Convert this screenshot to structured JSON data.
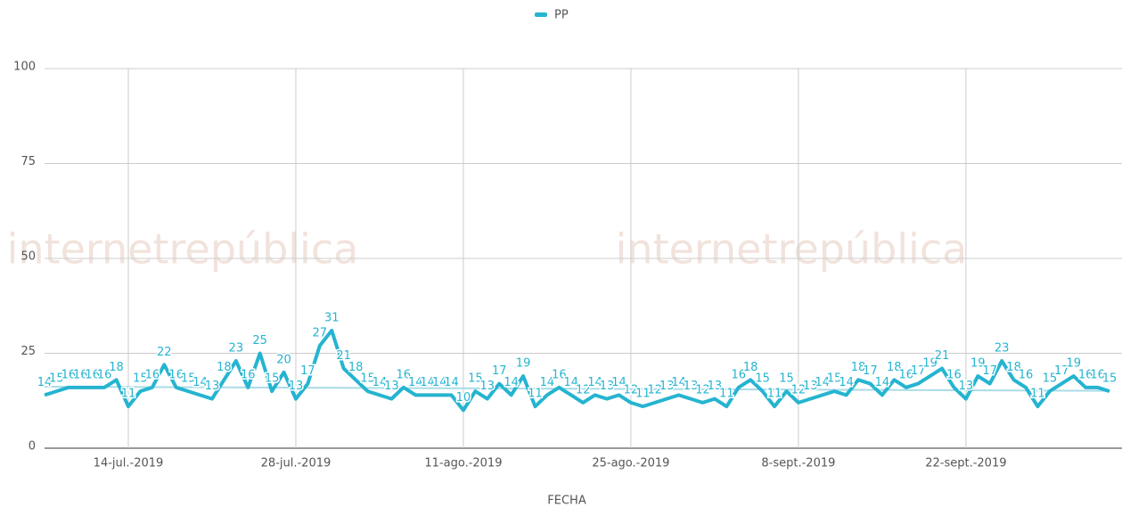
{
  "chart_data": {
    "type": "line",
    "legend_position": "top",
    "xlabel": "FECHA",
    "watermark": "internetrepública",
    "grid": true,
    "x": [
      "2019-07-07",
      "2019-07-08",
      "2019-07-09",
      "2019-07-10",
      "2019-07-11",
      "2019-07-12",
      "2019-07-13",
      "2019-07-14",
      "2019-07-15",
      "2019-07-16",
      "2019-07-17",
      "2019-07-18",
      "2019-07-19",
      "2019-07-20",
      "2019-07-21",
      "2019-07-22",
      "2019-07-23",
      "2019-07-24",
      "2019-07-25",
      "2019-07-26",
      "2019-07-27",
      "2019-07-28",
      "2019-07-29",
      "2019-07-30",
      "2019-07-31",
      "2019-08-01",
      "2019-08-02",
      "2019-08-03",
      "2019-08-04",
      "2019-08-05",
      "2019-08-06",
      "2019-08-07",
      "2019-08-08",
      "2019-08-09",
      "2019-08-10",
      "2019-08-11",
      "2019-08-12",
      "2019-08-13",
      "2019-08-14",
      "2019-08-15",
      "2019-08-16",
      "2019-08-17",
      "2019-08-18",
      "2019-08-19",
      "2019-08-20",
      "2019-08-21",
      "2019-08-22",
      "2019-08-23",
      "2019-08-24",
      "2019-08-25",
      "2019-08-26",
      "2019-08-27",
      "2019-08-28",
      "2019-08-29",
      "2019-08-30",
      "2019-08-31",
      "2019-09-01",
      "2019-09-02",
      "2019-09-03",
      "2019-09-04",
      "2019-09-05",
      "2019-09-06",
      "2019-09-07",
      "2019-09-08",
      "2019-09-09",
      "2019-09-10",
      "2019-09-11",
      "2019-09-12",
      "2019-09-13",
      "2019-09-14",
      "2019-09-15",
      "2019-09-16",
      "2019-09-17",
      "2019-09-18",
      "2019-09-19",
      "2019-09-20",
      "2019-09-21",
      "2019-09-22",
      "2019-09-23",
      "2019-09-24",
      "2019-09-25",
      "2019-09-26",
      "2019-09-27",
      "2019-09-28",
      "2019-09-29",
      "2019-09-30",
      "2019-10-01",
      "2019-10-02",
      "2019-10-03",
      "2019-10-04"
    ],
    "series": [
      {
        "name": "PP",
        "color": "#25b4d0",
        "values": [
          14,
          15,
          16,
          16,
          16,
          16,
          18,
          11,
          15,
          16,
          22,
          16,
          15,
          14,
          13,
          18,
          23,
          16,
          25,
          15,
          20,
          13,
          17,
          27,
          31,
          21,
          18,
          15,
          14,
          13,
          16,
          14,
          14,
          14,
          14,
          10,
          15,
          13,
          17,
          14,
          19,
          11,
          14,
          16,
          14,
          12,
          14,
          13,
          14,
          12,
          11,
          12,
          13,
          14,
          13,
          12,
          13,
          11,
          16,
          18,
          15,
          11,
          15,
          12,
          13,
          14,
          15,
          14,
          18,
          17,
          14,
          18,
          16,
          17,
          19,
          21,
          16,
          13,
          19,
          17,
          23,
          18,
          16,
          11,
          15,
          17,
          19,
          16,
          16,
          15
        ]
      }
    ],
    "trendline": {
      "color": "#a9dce7",
      "values": [
        16.2,
        15.1
      ]
    },
    "xlim": [
      "2019-07-07",
      "2019-10-04"
    ],
    "xticks": [
      {
        "value": "2019-07-14",
        "label": "14-jul.-2019"
      },
      {
        "value": "2019-07-28",
        "label": "28-jul.-2019"
      },
      {
        "value": "2019-08-11",
        "label": "11-ago.-2019"
      },
      {
        "value": "2019-08-25",
        "label": "25-ago.-2019"
      },
      {
        "value": "2019-09-08",
        "label": "8-sept.-2019"
      },
      {
        "value": "2019-09-22",
        "label": "22-sept.-2019"
      }
    ],
    "ylim": [
      0,
      100
    ],
    "yticks": [
      0,
      25,
      50,
      75,
      100
    ]
  }
}
